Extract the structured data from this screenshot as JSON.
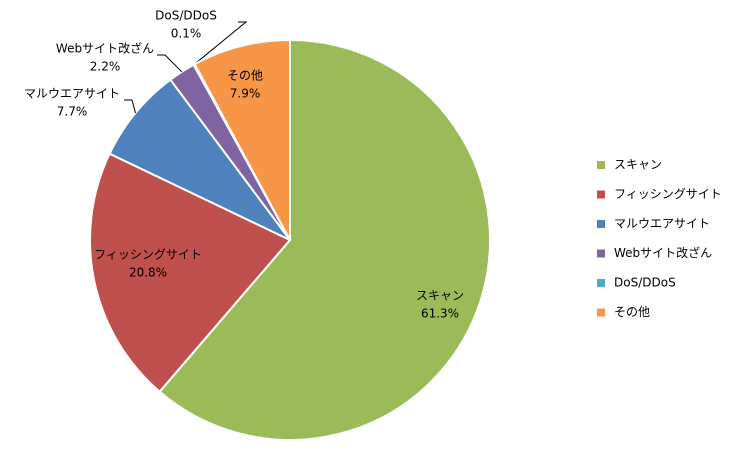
{
  "chart_data": {
    "type": "pie",
    "categories": [
      "スキャン",
      "フィッシングサイト",
      "マルウエアサイト",
      "Webサイト改ざん",
      "DoS/DDoS",
      "その他"
    ],
    "values": [
      61.3,
      20.8,
      7.7,
      2.2,
      0.1,
      7.9
    ],
    "value_labels": [
      "61.3%",
      "20.8%",
      "7.7%",
      "2.2%",
      "0.1%",
      "7.9%"
    ],
    "colors": [
      "#9bbb59",
      "#c0504d",
      "#4f81bd",
      "#8064a2",
      "#4bacc6",
      "#f79646"
    ],
    "legend": "right"
  }
}
